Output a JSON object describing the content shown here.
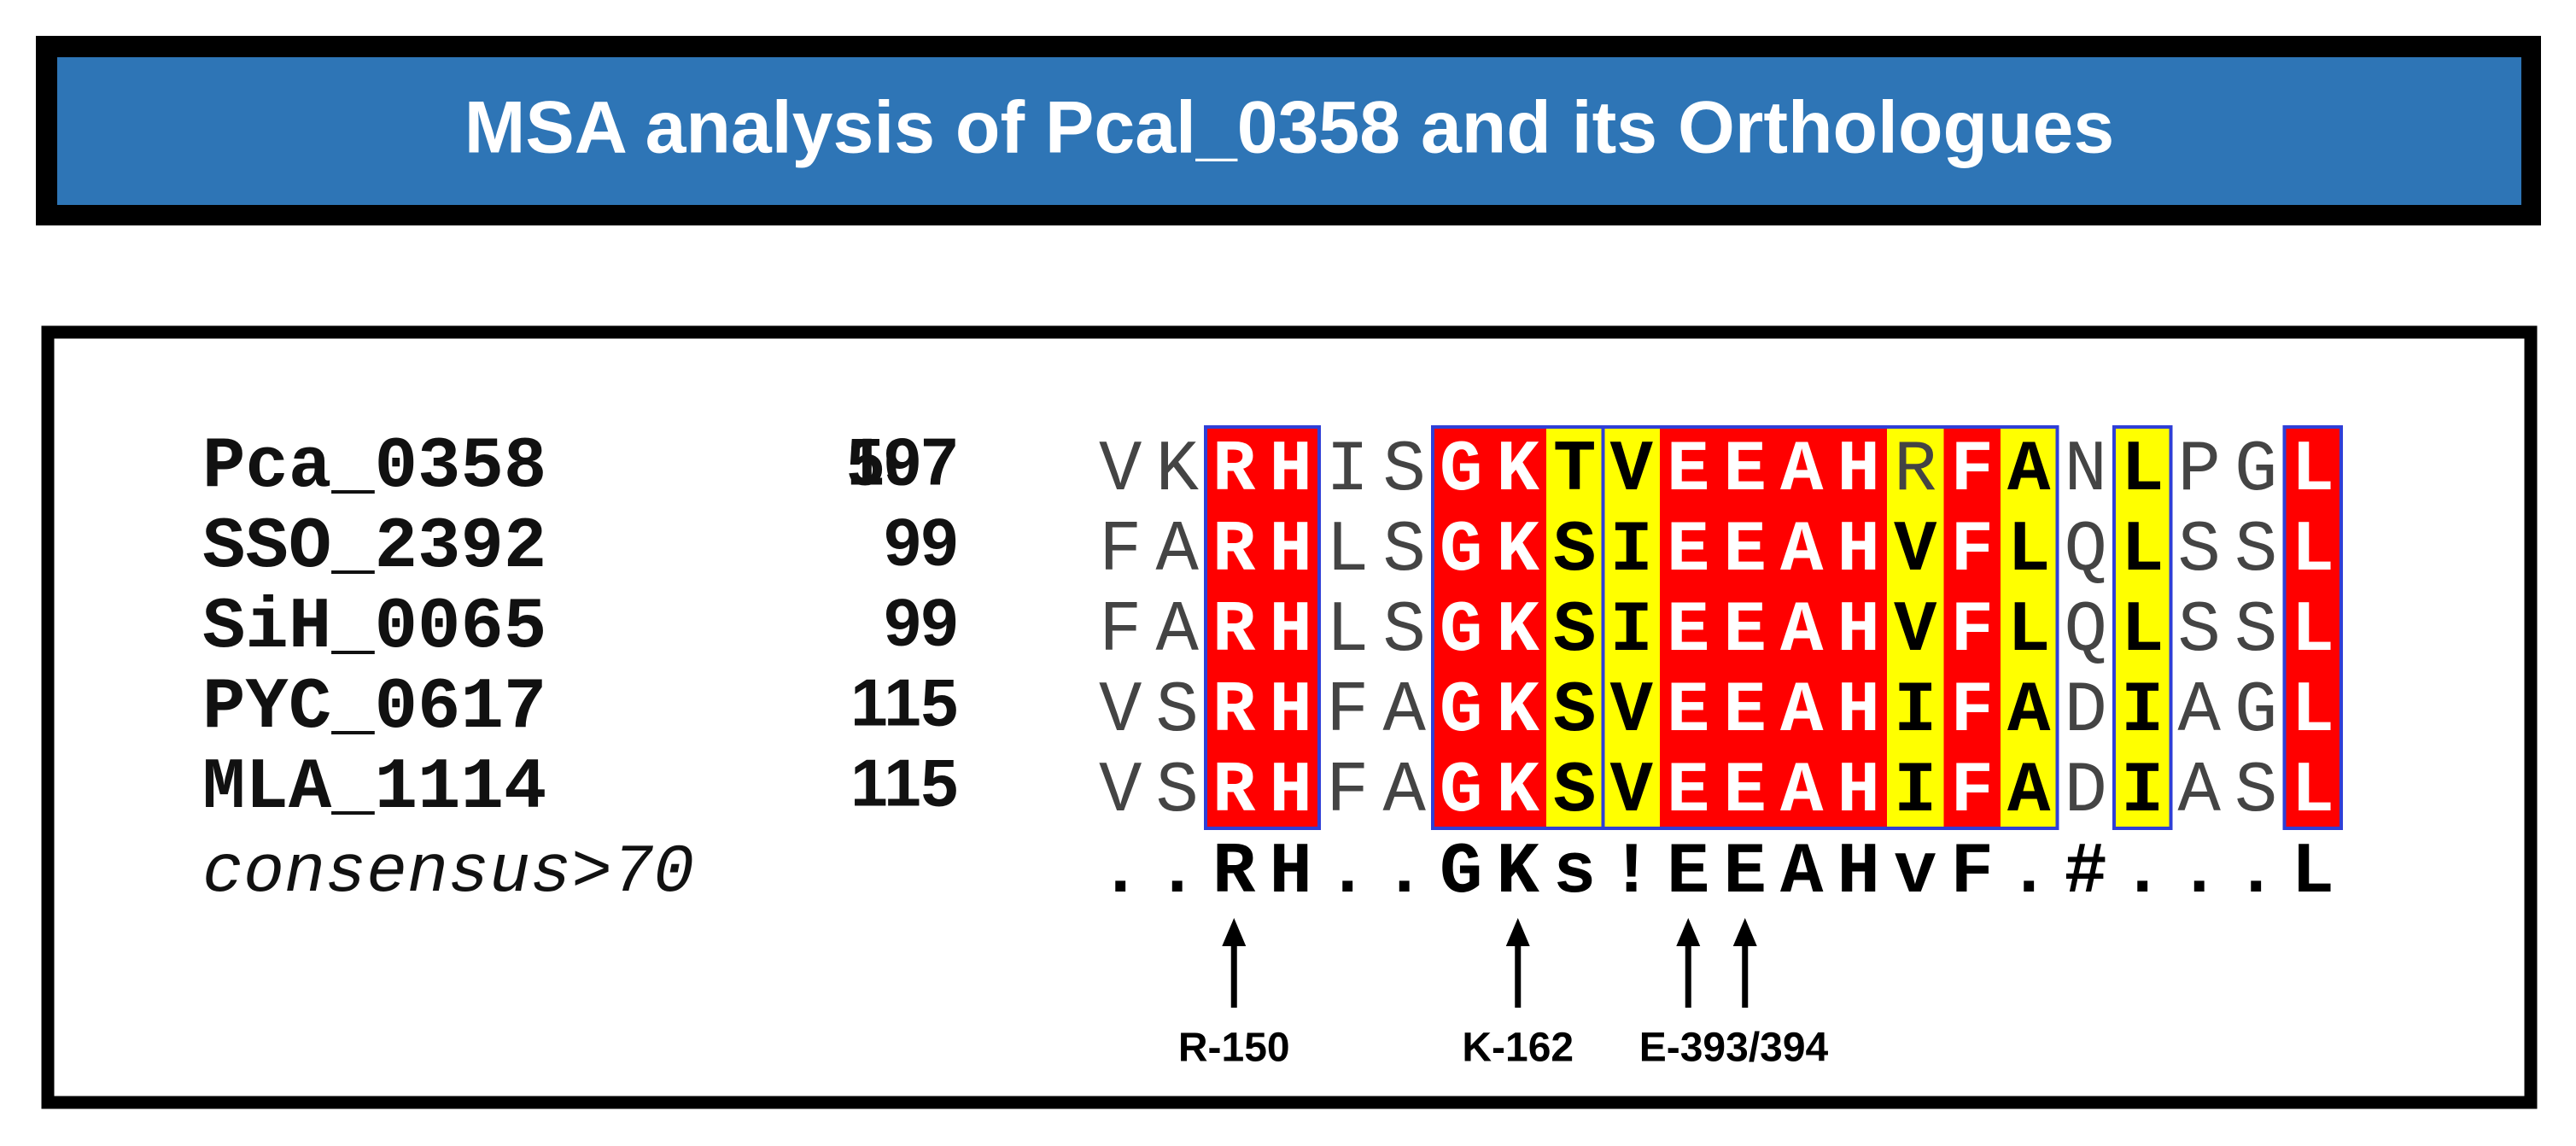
{
  "header": {
    "title": "MSA analysis of Pcal_0358 and its Orthologues"
  },
  "alignment": {
    "rows": [
      {
        "name": "Pca_0358",
        "number": "107",
        "number_overlap": "597",
        "residues": [
          "V",
          "K",
          "R",
          "H",
          "I",
          "S",
          "G",
          "K",
          "T",
          "V",
          "E",
          "E",
          "A",
          "H",
          "R",
          "F",
          "A",
          "N",
          "L",
          "P",
          "G",
          "L"
        ]
      },
      {
        "name": "SSO_2392",
        "number": "99",
        "residues": [
          "F",
          "A",
          "R",
          "H",
          "L",
          "S",
          "G",
          "K",
          "S",
          "I",
          "E",
          "E",
          "A",
          "H",
          "V",
          "F",
          "L",
          "Q",
          "L",
          "S",
          "S",
          "L"
        ]
      },
      {
        "name": "SiH_0065",
        "number": "99",
        "residues": [
          "F",
          "A",
          "R",
          "H",
          "L",
          "S",
          "G",
          "K",
          "S",
          "I",
          "E",
          "E",
          "A",
          "H",
          "V",
          "F",
          "L",
          "Q",
          "L",
          "S",
          "S",
          "L"
        ]
      },
      {
        "name": "PYC_0617",
        "number": "115",
        "residues": [
          "V",
          "S",
          "R",
          "H",
          "F",
          "A",
          "G",
          "K",
          "S",
          "V",
          "E",
          "E",
          "A",
          "H",
          "I",
          "F",
          "A",
          "D",
          "I",
          "A",
          "G",
          "L"
        ]
      },
      {
        "name": "MLA_1114",
        "number": "115",
        "residues": [
          "V",
          "S",
          "R",
          "H",
          "F",
          "A",
          "G",
          "K",
          "S",
          "V",
          "E",
          "E",
          "A",
          "H",
          "I",
          "F",
          "A",
          "D",
          "I",
          "A",
          "S",
          "L"
        ]
      }
    ],
    "consensus": {
      "name": "consensus>70",
      "residues": [
        ".",
        ".",
        "R",
        "H",
        ".",
        ".",
        "G",
        "K",
        "s",
        "!",
        "E",
        "E",
        "A",
        "H",
        "v",
        "F",
        ".",
        "#",
        ".",
        ".",
        ".",
        "L"
      ]
    }
  },
  "annotations": [
    {
      "label": "R-150"
    },
    {
      "label": "K-162"
    },
    {
      "label": "E-393/394"
    }
  ]
}
